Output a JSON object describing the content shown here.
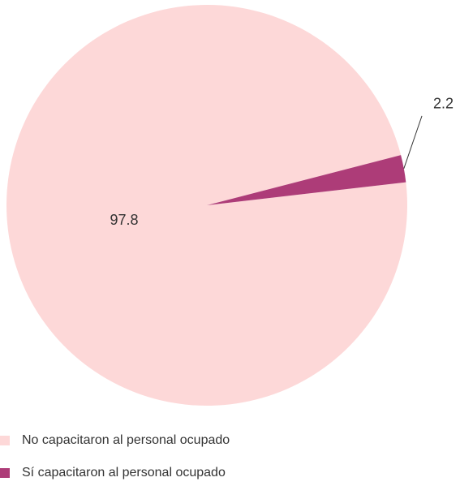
{
  "chart_data": {
    "type": "pie",
    "categories": [
      "No capacitaron al personal ocupado",
      "Sí capacitaron al personal ocupado"
    ],
    "values": [
      97.8,
      2.2
    ],
    "colors": [
      "#fdd8d8",
      "#ad3c78"
    ]
  }
}
